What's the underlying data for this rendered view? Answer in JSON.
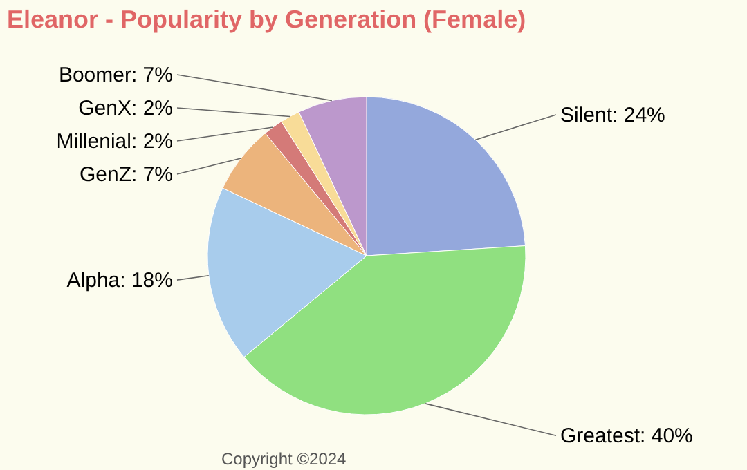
{
  "chart_data": {
    "type": "pie",
    "title": "Eleanor - Popularity by Generation (Female)",
    "categories": [
      "Silent",
      "Greatest",
      "Alpha",
      "GenZ",
      "Millenial",
      "GenX",
      "Boomer"
    ],
    "values": [
      24,
      40,
      18,
      7,
      2,
      2,
      7
    ],
    "value_labels": [
      "24%",
      "40%",
      "18%",
      "7%",
      "2%",
      "2%",
      "7%"
    ],
    "colors": [
      "#94a8dc",
      "#90e080",
      "#a8ccec",
      "#ecb47c",
      "#d47a78",
      "#f8dc98",
      "#bc98cc"
    ],
    "annotations": [
      "Copyright ©2024"
    ]
  }
}
